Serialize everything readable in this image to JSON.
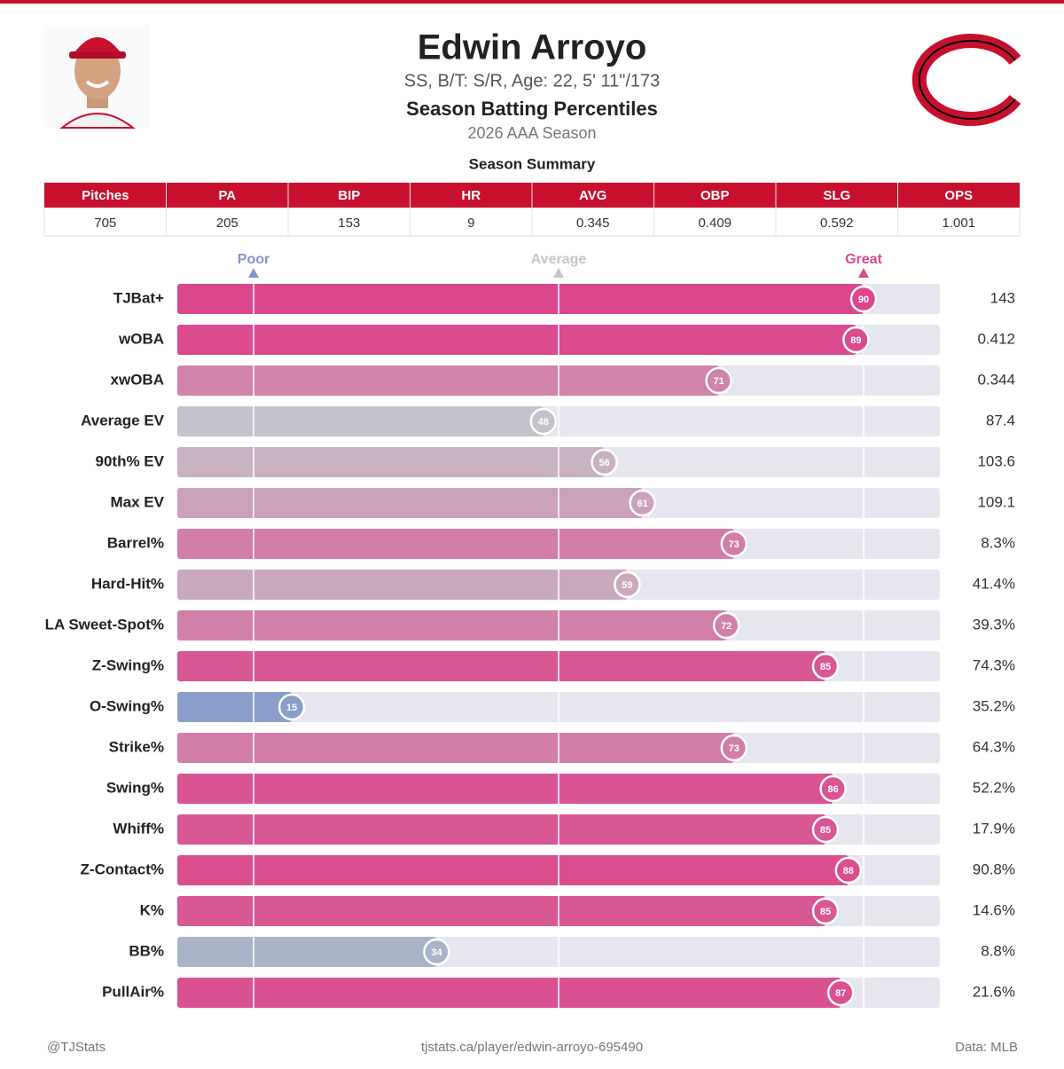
{
  "header": {
    "name": "Edwin Arroyo",
    "subtitle": "SS, B/T: S/R, Age: 22, 5' 11\"/173",
    "section": "Season Batting Percentiles",
    "season": "2026 AAA Season"
  },
  "summary": {
    "title": "Season Summary",
    "columns": [
      "Pitches",
      "PA",
      "BIP",
      "HR",
      "AVG",
      "OBP",
      "SLG",
      "OPS"
    ],
    "values": [
      705,
      205,
      153,
      9,
      0.345,
      0.409,
      0.592,
      1.001
    ]
  },
  "chart_data": {
    "type": "bar",
    "orientation": "horizontal",
    "categories": [
      "TJBat+",
      "wOBA",
      "xwOBA",
      "Average EV",
      "90th% EV",
      "Max EV",
      "Barrel%",
      "Hard-Hit%",
      "LA Sweet-Spot%",
      "Z-Swing%",
      "O-Swing%",
      "Strike%",
      "Swing%",
      "Whiff%",
      "Z-Contact%",
      "K%",
      "BB%",
      "PullAir%"
    ],
    "values": [
      90,
      89,
      71,
      48,
      56,
      61,
      73,
      59,
      72,
      85,
      15,
      73,
      86,
      85,
      88,
      85,
      34,
      87
    ],
    "metric_values": [
      "143",
      "0.412",
      "0.344",
      "87.4",
      "103.6",
      "109.1",
      "8.3%",
      "41.4%",
      "39.3%",
      "74.3%",
      "35.2%",
      "64.3%",
      "52.2%",
      "17.9%",
      "90.8%",
      "14.6%",
      "8.8%",
      "21.6%"
    ],
    "xlim": [
      0,
      100
    ],
    "xticks": [
      {
        "value": 10,
        "label": "Poor"
      },
      {
        "value": 50,
        "label": "Average"
      },
      {
        "value": 90,
        "label": "Great"
      }
    ],
    "colors": {
      "low": "#6f8dc6",
      "mid": "#c5c5cb",
      "high": "#e0287e"
    }
  },
  "footer": {
    "left": "@TJStats",
    "center": "tjstats.ca/player/edwin-arroyo-695490",
    "right": "Data: MLB"
  }
}
